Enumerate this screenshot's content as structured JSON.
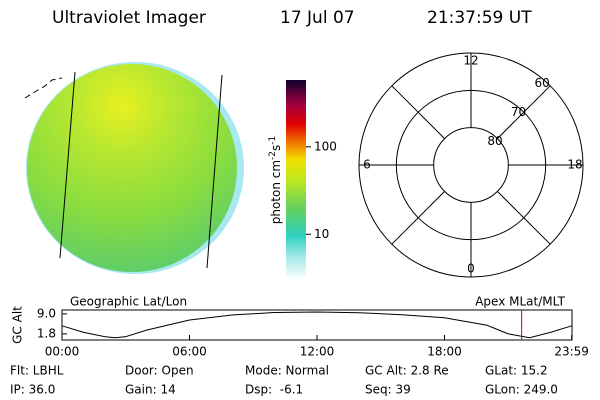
{
  "header": {
    "title": "Ultraviolet Imager",
    "date": "17 Jul 07",
    "time": "21:37:59 UT"
  },
  "colorbar": {
    "label": [
      "photon cm",
      "-2",
      "s",
      "-1"
    ],
    "log_scale": true,
    "lim": [
      3,
      580
    ],
    "ticks": [
      10,
      100
    ]
  },
  "polar": {
    "mlt_labels": [
      {
        "hour": 12,
        "label": "12"
      },
      {
        "hour": 18,
        "label": "18"
      },
      {
        "hour": 6,
        "label": "6"
      },
      {
        "hour": 0,
        "label": "0"
      }
    ],
    "rings": [
      80,
      70,
      60
    ]
  },
  "orbit_plot": {
    "left_title": "Geographic Lat/Lon",
    "right_title": "Apex MLat/MLT",
    "ylabel": "GC Alt",
    "ylim": [
      -0.4,
      10.4
    ],
    "yticks": [
      1.8,
      {
        "value": 9,
        "label": "9.0"
      }
    ],
    "xlim": [
      0,
      24
    ],
    "xticks": [
      {
        "value": 0,
        "label": "00:00"
      },
      {
        "value": 6,
        "label": "06:00"
      },
      {
        "value": 12,
        "label": "12:00"
      },
      {
        "value": 18,
        "label": "18:00"
      },
      {
        "value": 23.983,
        "label": "23:59"
      }
    ],
    "x": [
      0,
      1,
      2,
      2.5,
      3,
      4,
      6,
      8,
      10,
      12,
      14,
      16,
      18,
      20,
      21,
      22,
      23,
      23.99
    ],
    "values": [
      4.7,
      2.4,
      0.8,
      0.4,
      0.8,
      3.2,
      6.8,
      8.6,
      9.5,
      9.7,
      9.4,
      8.7,
      7.6,
      4.9,
      1.8,
      0.4,
      2.4,
      4.7
    ],
    "marker": 21.63,
    "marker_color": "#d00000"
  },
  "footer": {
    "rows": [
      [
        "Flt: LBHL",
        "Door: Open",
        "Mode: Normal",
        "GC Alt: 2.8 Re",
        "GLat: 15.2"
      ],
      [
        "IP: 36.0",
        "Gain: 14",
        "Dsp:  -6.1",
        "Seq: 39",
        "GLon: 249.0"
      ]
    ]
  }
}
